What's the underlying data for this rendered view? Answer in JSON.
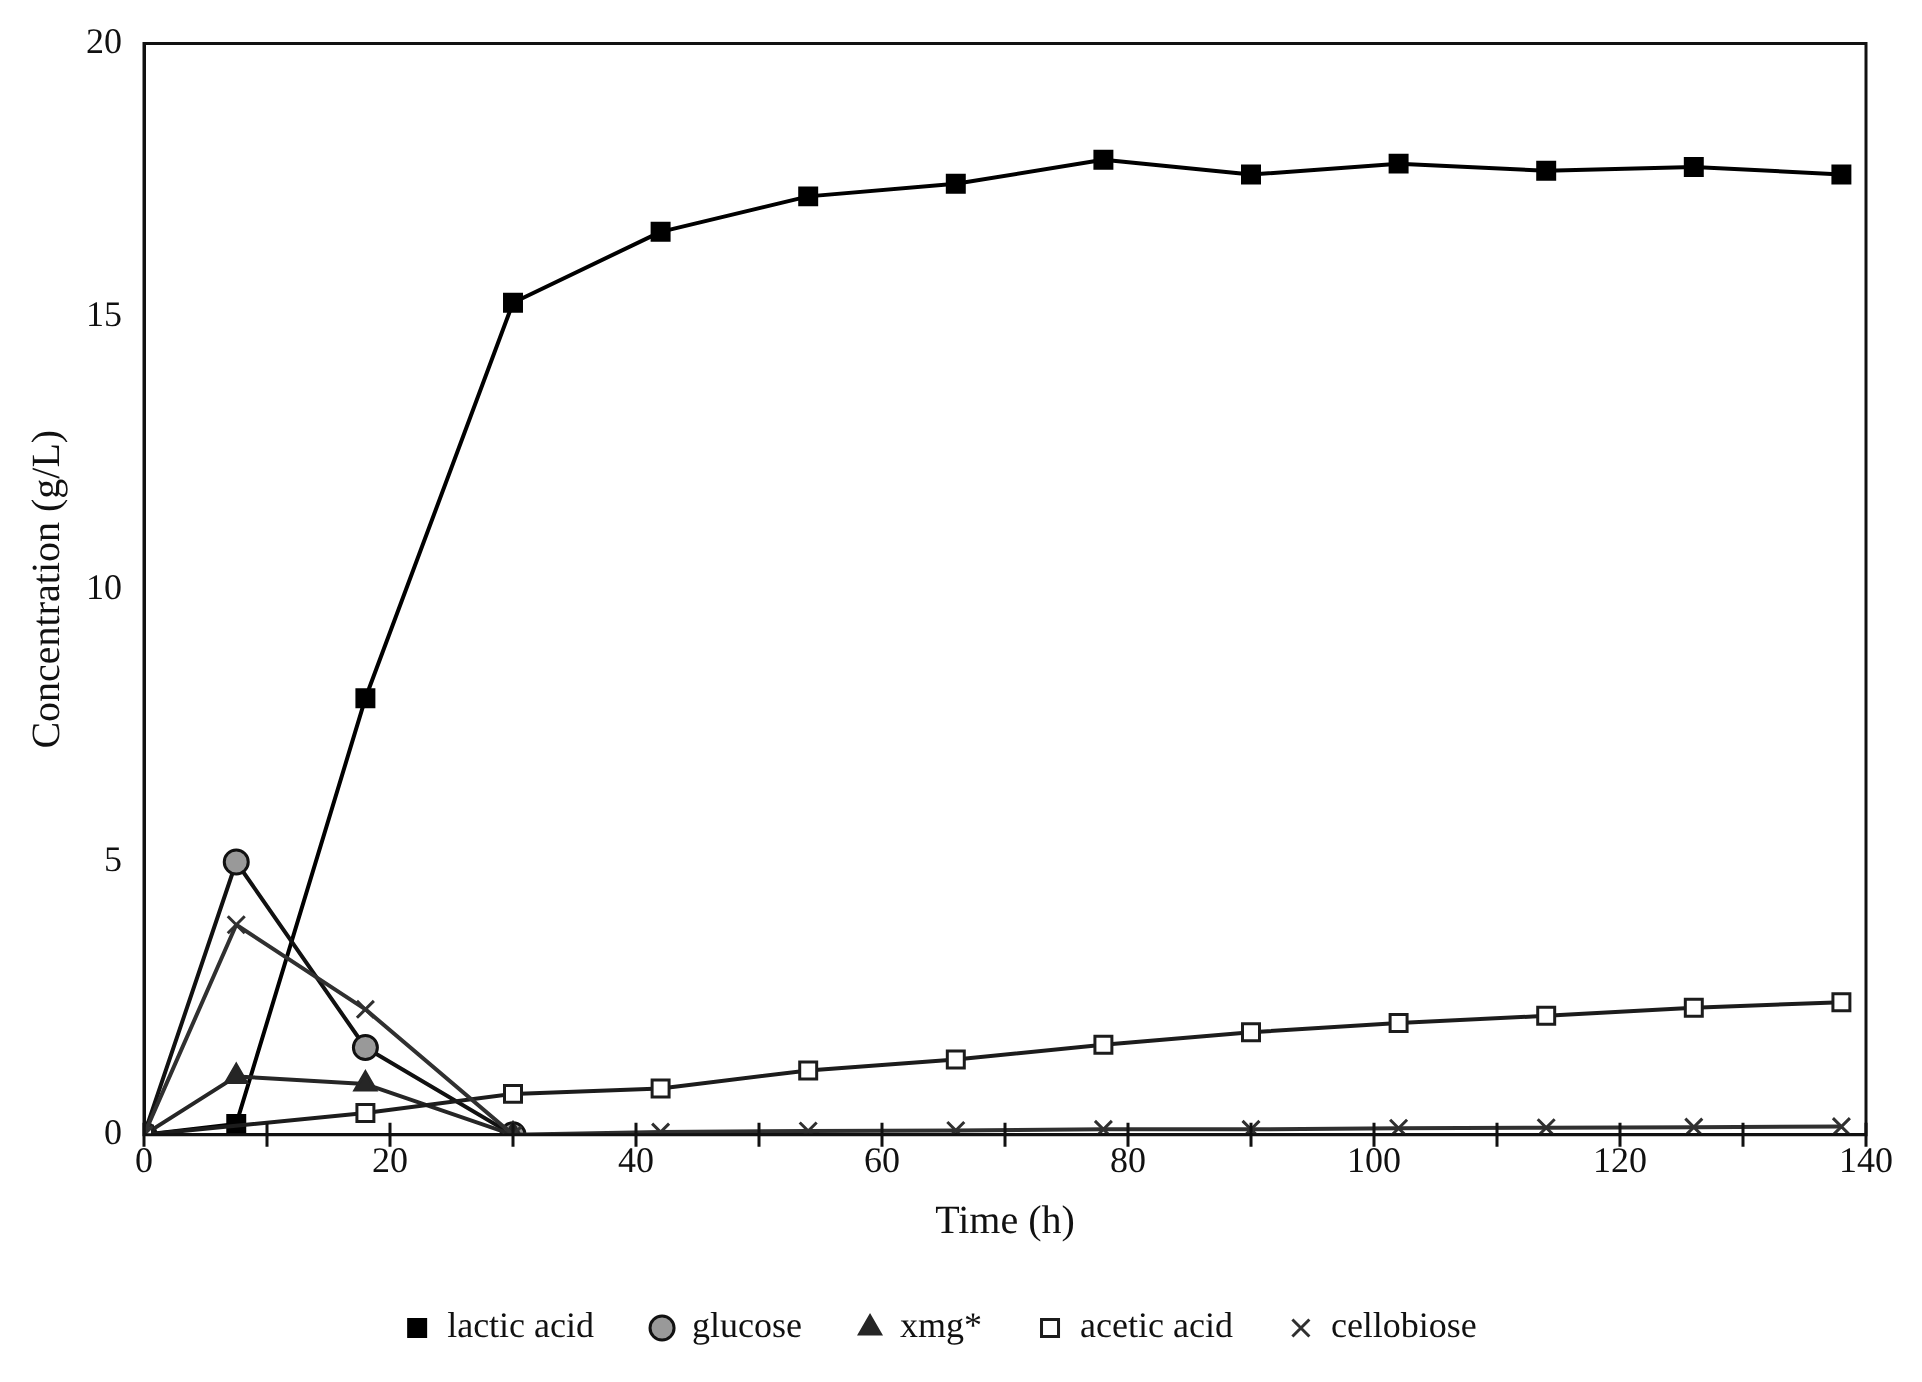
{
  "chart_data": {
    "type": "line",
    "xlabel": "Time (h)",
    "ylabel": "Concentration (g/L)",
    "xlim": [
      0,
      140
    ],
    "ylim": [
      0,
      20
    ],
    "xticks": [
      0,
      {
        "value": 10,
        "label": null
      },
      20,
      {
        "value": 30,
        "label": null
      },
      40,
      {
        "value": 50,
        "label": null
      },
      60,
      {
        "value": 70,
        "label": null
      },
      80,
      {
        "value": 90,
        "label": null
      },
      100,
      {
        "value": 110,
        "label": null
      },
      120,
      {
        "value": 130,
        "label": null
      },
      140
    ],
    "yticks": [
      0,
      5,
      10,
      15,
      20
    ],
    "grid": false,
    "legend": "bottom",
    "line_style": "solid",
    "series": [
      {
        "name": "lactic acid",
        "color": "#000000",
        "marker": "square",
        "x": [
          0,
          7.5,
          18,
          30,
          42,
          54,
          66,
          78,
          90,
          102,
          114,
          126,
          138
        ],
        "values": [
          0,
          0.2,
          8.0,
          15.25,
          16.55,
          17.2,
          17.43,
          17.87,
          17.6,
          17.8,
          17.67,
          17.74,
          17.6
        ]
      },
      {
        "name": "glucose",
        "color": "#111111",
        "marker": "circle",
        "x": [
          0,
          7.5,
          18,
          30
        ],
        "values": [
          0,
          5.0,
          1.6,
          0
        ]
      },
      {
        "name": "xmg*",
        "color": "#262626",
        "marker": "triangle",
        "x": [
          0,
          7.5,
          18,
          30
        ],
        "values": [
          0,
          1.07,
          0.93,
          0
        ]
      },
      {
        "name": "acetic acid",
        "color": "#1c1c1c",
        "marker": "square",
        "x": [
          0,
          18,
          30,
          42,
          54,
          66,
          78,
          90,
          102,
          114,
          126,
          138
        ],
        "values": [
          0,
          0.4,
          0.75,
          0.85,
          1.18,
          1.38,
          1.65,
          1.88,
          2.05,
          2.18,
          2.33,
          2.43
        ]
      },
      {
        "name": "cellobiose",
        "color": "#303030",
        "marker": "cross",
        "x": [
          0,
          7.5,
          18,
          30,
          42,
          54,
          66,
          78,
          90,
          102,
          114,
          126,
          138
        ],
        "values": [
          0,
          3.85,
          2.3,
          0,
          0.05,
          0.07,
          0.08,
          0.1,
          0.1,
          0.12,
          0.13,
          0.14,
          0.15
        ]
      }
    ]
  }
}
